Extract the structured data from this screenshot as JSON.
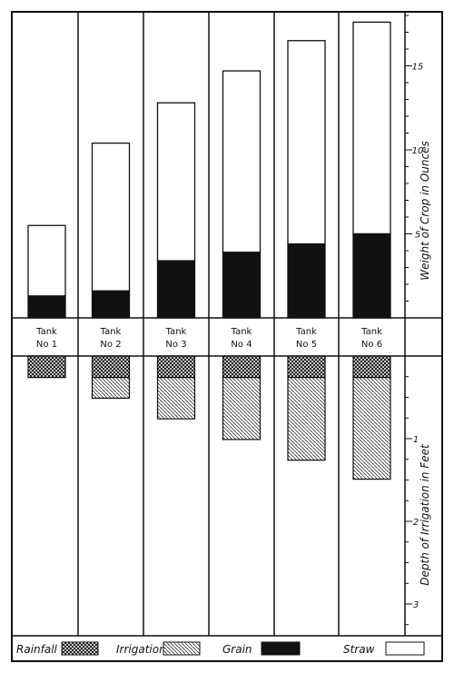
{
  "chart_data": [
    {
      "type": "bar",
      "stacked": true,
      "ylabel": "Weight of Crop in Ounces",
      "ylim": [
        0,
        18
      ],
      "yticks": [
        5,
        10,
        15
      ],
      "categories": [
        "Tank\nNo 1",
        "Tank\nNo 2",
        "Tank\nNo 3",
        "Tank\nNo 4",
        "Tank\nNo 5",
        "Tank\nNo 6"
      ],
      "series": [
        {
          "name": "Grain",
          "values": [
            1.3,
            1.6,
            3.4,
            3.9,
            4.4,
            5.0
          ]
        },
        {
          "name": "Straw",
          "values": [
            4.2,
            8.8,
            9.4,
            10.8,
            12.1,
            12.6
          ]
        }
      ]
    },
    {
      "type": "bar",
      "stacked": true,
      "ylabel": "Depth of Irrigation in Feet",
      "ylim": [
        0,
        3.35
      ],
      "yticks": [
        1,
        2,
        3
      ],
      "inverted": true,
      "series": [
        {
          "name": "Rainfall",
          "values": [
            0.26,
            0.26,
            0.26,
            0.26,
            0.26,
            0.26
          ]
        },
        {
          "name": "Irrigation",
          "values": [
            0,
            0.25,
            0.5,
            0.75,
            1.0,
            1.23
          ]
        }
      ]
    }
  ],
  "legend": [
    {
      "label": "Rainfall",
      "pattern": "crosshatch"
    },
    {
      "label": "Irrigation",
      "pattern": "diagonal"
    },
    {
      "label": "Grain",
      "pattern": "solid"
    },
    {
      "label": "Straw",
      "pattern": "empty"
    }
  ],
  "colors": {
    "ink": "#111111",
    "paper": "#ffffff"
  }
}
